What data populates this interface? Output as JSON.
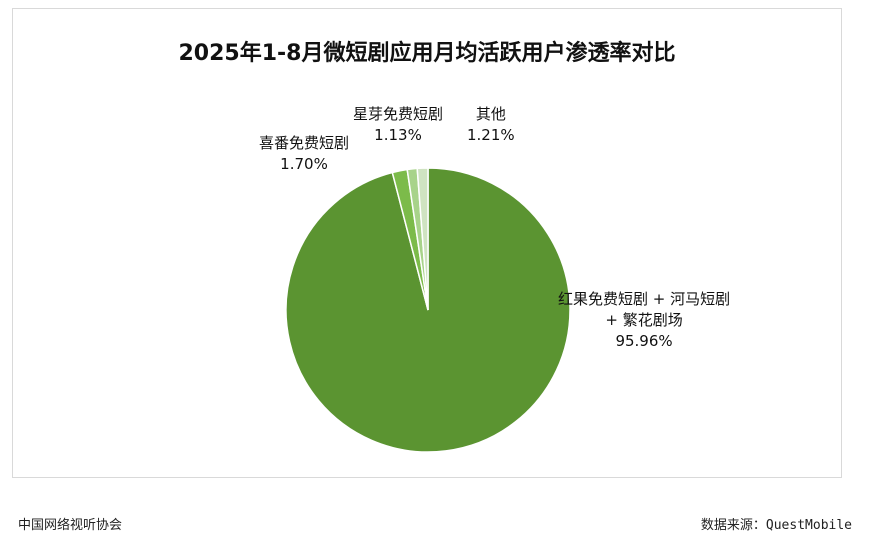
{
  "chart_data": {
    "type": "pie",
    "title": "2025年1-8月微短剧应用月均活跃用户渗透率对比",
    "slices": [
      {
        "label": "红果免费短剧 + 河马短剧",
        "label_line2": "+ 繁花剧场",
        "value": 95.96,
        "value_text": "95.96%",
        "color": "#5b9431"
      },
      {
        "label": "喜番免费短剧",
        "value": 1.7,
        "value_text": "1.70%",
        "color": "#7cbb4a"
      },
      {
        "label": "星芽免费短剧",
        "value": 1.13,
        "value_text": "1.13%",
        "color": "#a8d38a"
      },
      {
        "label": "其他",
        "value": 1.21,
        "value_text": "1.21%",
        "color": "#cfe3c1"
      }
    ],
    "legend": "none"
  },
  "footer": {
    "source_org": "中国网络视听协会",
    "data_source": "数据来源：QuestMobile"
  }
}
